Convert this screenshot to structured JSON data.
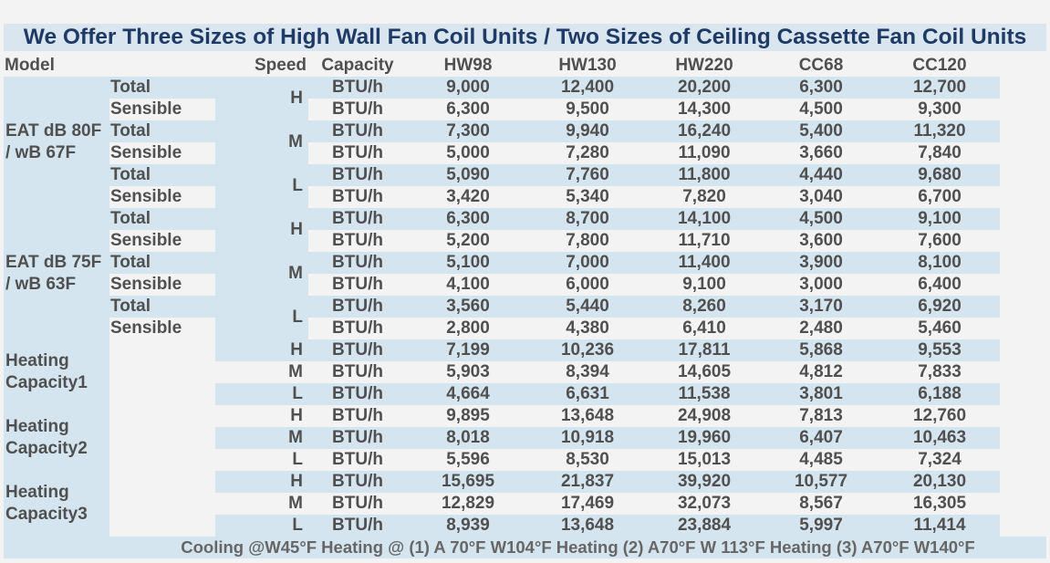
{
  "title": "We Offer Three Sizes of High Wall Fan Coil Units / Two Sizes of Ceiling Cassette Fan Coil Units",
  "header": {
    "model": "Model",
    "speed": "Speed",
    "capacity": "Capacity",
    "models": [
      "HW98",
      "HW130",
      "HW220",
      "CC68",
      "CC120"
    ]
  },
  "groups": [
    {
      "label": "",
      "rows": [
        {
          "type": "Total",
          "speed": "H",
          "unit": "BTU/h",
          "values": [
            "9,000",
            "12,400",
            "20,200",
            "6,300",
            "12,700"
          ]
        },
        {
          "type": "Sensible",
          "speed": "",
          "unit": "BTU/h",
          "values": [
            "6,300",
            "9,500",
            "14,300",
            "4,500",
            "9,300"
          ]
        }
      ]
    },
    {
      "label": "EAT dB 80F / wB 67F",
      "rows": [
        {
          "type": "Total",
          "speed": "M",
          "unit": "BTU/h",
          "values": [
            "7,300",
            "9,940",
            "16,240",
            "5,400",
            "11,320"
          ]
        },
        {
          "type": "Sensible",
          "speed": "",
          "unit": "BTU/h",
          "values": [
            "5,000",
            "7,280",
            "11,090",
            "3,660",
            "7,840"
          ]
        },
        {
          "type": "Total",
          "speed": "L",
          "unit": "BTU/h",
          "values": [
            "5,090",
            "7,760",
            "11,800",
            "4,440",
            "9,680"
          ]
        },
        {
          "type": "Sensible",
          "speed": "",
          "unit": "BTU/h",
          "values": [
            "3,420",
            "5,340",
            "7,820",
            "3,040",
            "6,700"
          ]
        }
      ]
    },
    {
      "label": "EAT dB 75F / wB 63F",
      "rows": [
        {
          "type": "Total",
          "speed": "H",
          "unit": "BTU/h",
          "values": [
            "6,300",
            "8,700",
            "14,100",
            "4,500",
            "9,100"
          ]
        },
        {
          "type": "Sensible",
          "speed": "",
          "unit": "BTU/h",
          "values": [
            "5,200",
            "7,800",
            "11,710",
            "3,600",
            "7,600"
          ]
        },
        {
          "type": "Total",
          "speed": "M",
          "unit": "BTU/h",
          "values": [
            "5,100",
            "7,000",
            "11,400",
            "3,900",
            "8,100"
          ]
        },
        {
          "type": "Sensible",
          "speed": "",
          "unit": "BTU/h",
          "values": [
            "4,100",
            "6,000",
            "9,100",
            "3,000",
            "6,400"
          ]
        },
        {
          "type": "Total",
          "speed": "L",
          "unit": "BTU/h",
          "values": [
            "3,560",
            "5,440",
            "8,260",
            "3,170",
            "6,920"
          ]
        },
        {
          "type": "Sensible",
          "speed": "",
          "unit": "BTU/h",
          "values": [
            "2,800",
            "4,380",
            "6,410",
            "2,480",
            "5,460"
          ]
        }
      ]
    },
    {
      "label": "Heating Capacity1",
      "rows": [
        {
          "type": "",
          "speed": "H",
          "unit": "BTU/h",
          "values": [
            "7,199",
            "10,236",
            "17,811",
            "5,868",
            "9,553"
          ]
        },
        {
          "type": "",
          "speed": "M",
          "unit": "BTU/h",
          "values": [
            "5,903",
            "8,394",
            "14,605",
            "4,812",
            "7,833"
          ]
        },
        {
          "type": "",
          "speed": "L",
          "unit": "BTU/h",
          "values": [
            "4,664",
            "6,631",
            "11,538",
            "3,801",
            "6,188"
          ]
        }
      ]
    },
    {
      "label": "Heating Capacity2",
      "rows": [
        {
          "type": "",
          "speed": "H",
          "unit": "BTU/h",
          "values": [
            "9,895",
            "13,648",
            "24,908",
            "7,813",
            "12,760"
          ]
        },
        {
          "type": "",
          "speed": "M",
          "unit": "BTU/h",
          "values": [
            "8,018",
            "10,918",
            "19,960",
            "6,407",
            "10,463"
          ]
        },
        {
          "type": "",
          "speed": "L",
          "unit": "BTU/h",
          "values": [
            "5,596",
            "8,530",
            "15,013",
            "4,485",
            "7,324"
          ]
        }
      ]
    },
    {
      "label": "Heating Capacity3",
      "rows": [
        {
          "type": "",
          "speed": "H",
          "unit": "BTU/h",
          "values": [
            "15,695",
            "21,837",
            "39,920",
            "10,577",
            "20,130"
          ]
        },
        {
          "type": "",
          "speed": "M",
          "unit": "BTU/h",
          "values": [
            "12,829",
            "17,469",
            "32,073",
            "8,567",
            "16,305"
          ]
        },
        {
          "type": "",
          "speed": "L",
          "unit": "BTU/h",
          "values": [
            "8,939",
            "13,648",
            "23,884",
            "5,997",
            "11,414"
          ]
        }
      ]
    }
  ],
  "footer": "Cooling @W45°F Heating @ (1) A 70°F W104°F Heating (2) A70°F W 113°F Heating (3) A70°F W140°F"
}
